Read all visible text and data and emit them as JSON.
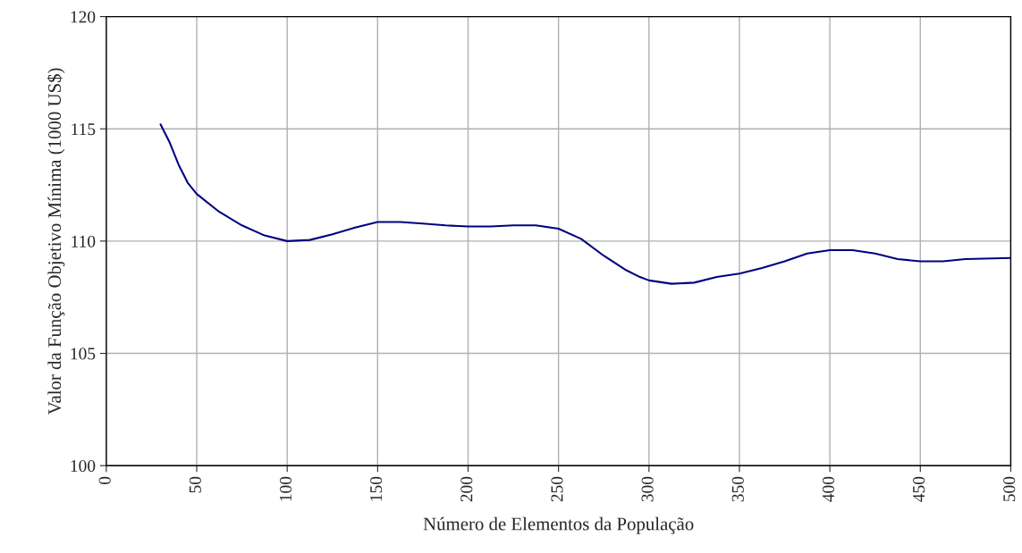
{
  "chart_data": {
    "type": "line",
    "xlabel": "Número de Elementos da População",
    "ylabel": "Valor da Função Objetivo Mínima (1000 US$)",
    "x": [
      30,
      35,
      40,
      45,
      50,
      62.5,
      75,
      87.5,
      100,
      112.5,
      125,
      137.5,
      150,
      162.5,
      175,
      187.5,
      200,
      212.5,
      225,
      237.5,
      250,
      262.5,
      275,
      287.5,
      295,
      300,
      312.5,
      325,
      337.5,
      350,
      362.5,
      375,
      387.5,
      400,
      412.5,
      425,
      437.5,
      450,
      462.5,
      475,
      500
    ],
    "series": [
      {
        "color": "#000080",
        "values": [
          115.2,
          114.4,
          113.4,
          112.6,
          112.1,
          111.3,
          110.7,
          110.25,
          110.0,
          110.05,
          110.3,
          110.6,
          110.85,
          110.85,
          110.78,
          110.7,
          110.65,
          110.65,
          110.7,
          110.7,
          110.55,
          110.1,
          109.35,
          108.7,
          108.4,
          108.25,
          108.1,
          108.15,
          108.4,
          108.55,
          108.8,
          109.1,
          109.45,
          109.6,
          109.6,
          109.45,
          109.2,
          109.1,
          109.1,
          109.2,
          109.25
        ]
      }
    ],
    "xlim": [
      0,
      500
    ],
    "xticks": [
      0,
      50,
      100,
      150,
      200,
      250,
      300,
      350,
      400,
      450,
      500
    ],
    "ylim": [
      100,
      120
    ],
    "yticks": [
      100,
      105,
      110,
      115,
      120
    ],
    "grid": true,
    "marker": "none",
    "line_style": "solid"
  }
}
